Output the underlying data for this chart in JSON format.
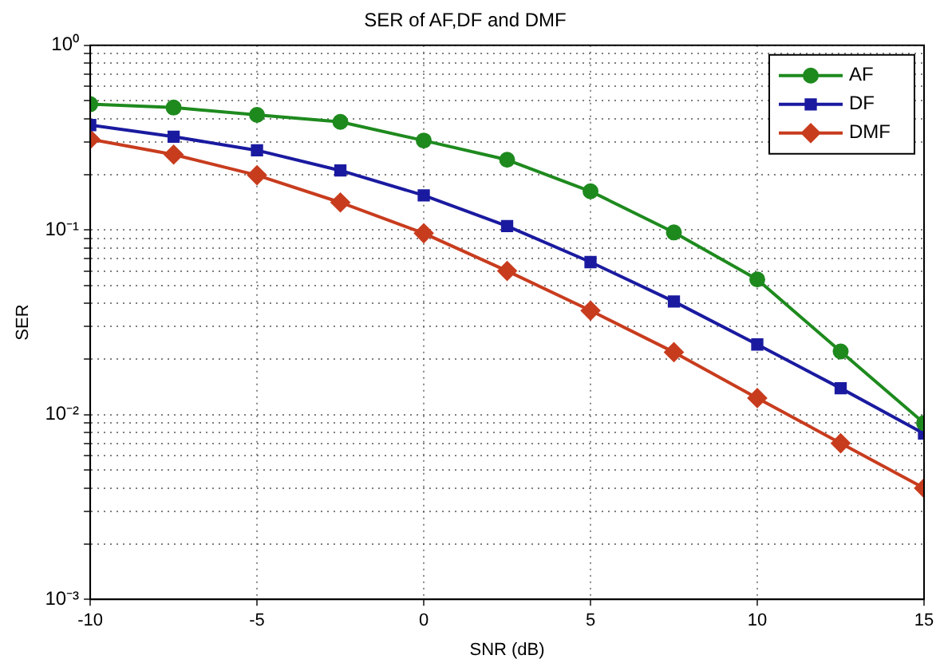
{
  "chart_data": {
    "type": "line",
    "title": "SER of AF,DF and DMF",
    "xlabel": "SNR (dB)",
    "ylabel": "SER",
    "x": [
      -10,
      -7.5,
      -5,
      -2.5,
      0,
      2.5,
      5,
      7.5,
      10,
      12.5,
      15
    ],
    "series": [
      {
        "name": "AF",
        "color": "#1e8a1e",
        "marker": "circle",
        "values": [
          0.48,
          0.46,
          0.42,
          0.385,
          0.305,
          0.24,
          0.162,
          0.097,
          0.054,
          0.022,
          0.009
        ]
      },
      {
        "name": "DF",
        "color": "#1a1aa0",
        "marker": "square",
        "values": [
          0.37,
          0.32,
          0.27,
          0.21,
          0.154,
          0.105,
          0.067,
          0.041,
          0.024,
          0.0139,
          0.0079
        ]
      },
      {
        "name": "DMF",
        "color": "#c83c1e",
        "marker": "diamond",
        "values": [
          0.31,
          0.256,
          0.198,
          0.141,
          0.096,
          0.06,
          0.0366,
          0.0218,
          0.0123,
          0.007,
          0.004
        ]
      }
    ],
    "xlim": [
      -10,
      15
    ],
    "xticks": [
      -10,
      -5,
      0,
      5,
      10,
      15
    ],
    "ylim": [
      0.001,
      1
    ],
    "log": "y",
    "yticks": [
      {
        "value": 0.001,
        "label": "10⁻³"
      },
      {
        "value": 0.002,
        "label": null
      },
      {
        "value": 0.003,
        "label": null
      },
      {
        "value": 0.004,
        "label": null
      },
      {
        "value": 0.005,
        "label": null
      },
      {
        "value": 0.006,
        "label": null
      },
      {
        "value": 0.007,
        "label": null
      },
      {
        "value": 0.008,
        "label": null
      },
      {
        "value": 0.009,
        "label": null
      },
      {
        "value": 0.01,
        "label": "10⁻²"
      },
      {
        "value": 0.02,
        "label": null
      },
      {
        "value": 0.03,
        "label": null
      },
      {
        "value": 0.04,
        "label": null
      },
      {
        "value": 0.05,
        "label": null
      },
      {
        "value": 0.06,
        "label": null
      },
      {
        "value": 0.07,
        "label": null
      },
      {
        "value": 0.08,
        "label": null
      },
      {
        "value": 0.09,
        "label": null
      },
      {
        "value": 0.1,
        "label": "10⁻¹"
      },
      {
        "value": 0.2,
        "label": null
      },
      {
        "value": 0.3,
        "label": null
      },
      {
        "value": 0.4,
        "label": null
      },
      {
        "value": 0.5,
        "label": null
      },
      {
        "value": 0.6,
        "label": null
      },
      {
        "value": 0.7,
        "label": null
      },
      {
        "value": 0.8,
        "label": null
      },
      {
        "value": 0.9,
        "label": null
      },
      {
        "value": 1,
        "label": "10⁰"
      }
    ],
    "grid": true,
    "legend": "top right",
    "line_style": "solid"
  }
}
